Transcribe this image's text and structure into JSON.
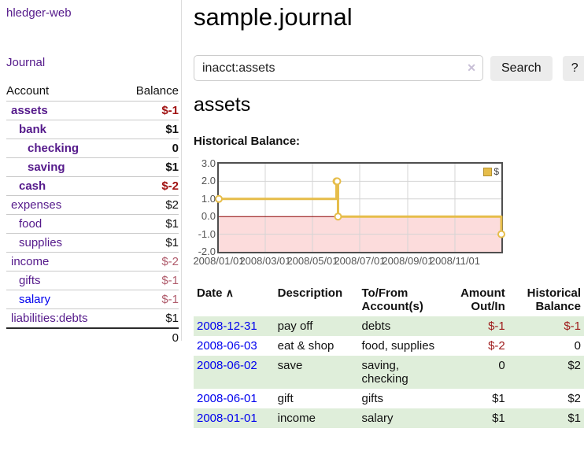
{
  "app": {
    "brand": "hledger-web",
    "nav_journal": "Journal"
  },
  "sidebar": {
    "columns": {
      "account": "Account",
      "balance": "Balance"
    },
    "accounts": [
      {
        "name": "assets",
        "balance": "$-1"
      },
      {
        "name": "bank",
        "balance": "$1"
      },
      {
        "name": "checking",
        "balance": "0"
      },
      {
        "name": "saving",
        "balance": "$1"
      },
      {
        "name": "cash",
        "balance": "$-2"
      },
      {
        "name": "expenses",
        "balance": "$2"
      },
      {
        "name": "food",
        "balance": "$1"
      },
      {
        "name": "supplies",
        "balance": "$1"
      },
      {
        "name": "income",
        "balance": "$-2"
      },
      {
        "name": "gifts",
        "balance": "$-1"
      },
      {
        "name": "salary",
        "balance": "$-1"
      },
      {
        "name": "liabilities:debts",
        "balance": "$1"
      }
    ],
    "total": "0"
  },
  "main": {
    "title": "sample.journal",
    "search": {
      "value": "inacct:assets",
      "clear_icon": "✕",
      "button": "Search",
      "help": "?"
    },
    "account_heading": "assets",
    "chart_label": "Historical Balance:"
  },
  "chart_data": {
    "type": "line",
    "style": "steps",
    "title": "Historical Balance",
    "legend": [
      {
        "name": "$",
        "color": "#e6bd4a"
      }
    ],
    "legend_position": "top-right",
    "grid": true,
    "ylim": [
      -2.0,
      3.0
    ],
    "xmin": "2008-01-01",
    "xmax": "2008-12-31",
    "yticks": [
      {
        "label": "3.0",
        "value": 3
      },
      {
        "label": "2.0",
        "value": 2
      },
      {
        "label": "1.0",
        "value": 1
      },
      {
        "label": "0.0",
        "value": 0
      },
      {
        "label": "-1.0",
        "value": -1
      },
      {
        "label": "-2.0",
        "value": -2
      }
    ],
    "xticks": [
      {
        "label": "2008/01/01",
        "date": "2008-01-01"
      },
      {
        "label": "2008/03/01",
        "date": "2008-03-01"
      },
      {
        "label": "2008/05/01",
        "date": "2008-05-01"
      },
      {
        "label": "2008/07/01",
        "date": "2008-07-01"
      },
      {
        "label": "2008/09/01",
        "date": "2008-09-01"
      },
      {
        "label": "2008/11/01",
        "date": "2008-11-01"
      }
    ],
    "series": [
      {
        "name": "$",
        "points": [
          {
            "x": "2008-01-01",
            "y": 1
          },
          {
            "x": "2008-06-01",
            "y": 2
          },
          {
            "x": "2008-06-02",
            "y": 2
          },
          {
            "x": "2008-06-03",
            "y": 0
          },
          {
            "x": "2008-12-31",
            "y": -1
          }
        ]
      }
    ],
    "zero_line_color": "#8b0000",
    "negative_region_fill": "#fcdcdc"
  },
  "register": {
    "headers": {
      "date": "Date",
      "sort_indicator": "∧",
      "description": "Description",
      "accounts": "To/From Account(s)",
      "amount": "Amount Out/In",
      "balance": "Historical Balance"
    },
    "rows": [
      {
        "date": "2008-12-31",
        "description": "pay off",
        "accounts": "debts",
        "amount": "$-1",
        "balance": "$-1"
      },
      {
        "date": "2008-06-03",
        "description": "eat & shop",
        "accounts": "food, supplies",
        "amount": "$-2",
        "balance": "0"
      },
      {
        "date": "2008-06-02",
        "description": "save",
        "accounts": "saving, checking",
        "amount": "0",
        "balance": "$2"
      },
      {
        "date": "2008-06-01",
        "description": "gift",
        "accounts": "gifts",
        "amount": "$1",
        "balance": "$2"
      },
      {
        "date": "2008-01-01",
        "description": "income",
        "accounts": "salary",
        "amount": "$1",
        "balance": "$1"
      }
    ]
  },
  "colors": {
    "link_visited_purple": "#551a8b",
    "link_unvisited_blue": "#0000ee",
    "negative_bold": "#a01212",
    "negative_muted": "#b05c6c",
    "negative_register": "#9e1a1a",
    "row_stripe_green": "#dfeeda",
    "chart_line": "#e6bd4a",
    "chart_negative_fill": "#fcdcdc",
    "chart_zero_line": "#8b0000",
    "chart_border": "#4f4f4f"
  }
}
